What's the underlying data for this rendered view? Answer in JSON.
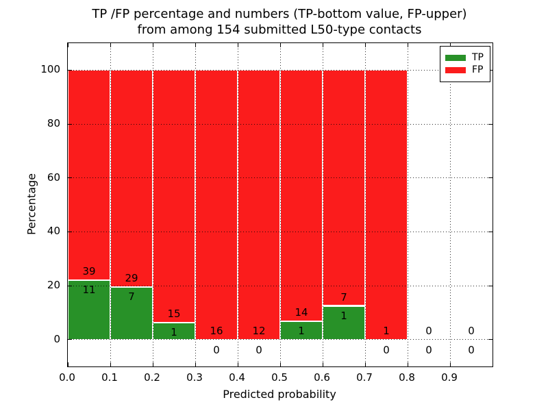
{
  "title": {
    "line1": "TP /FP percentage and numbers (TP-bottom value, FP-upper)",
    "line2": "from among 154 submitted L50-type contacts"
  },
  "chart_data": {
    "type": "bar",
    "stacked": true,
    "normalized_to_percent": true,
    "title": "TP /FP percentage and numbers (TP-bottom value, FP-upper)\nfrom among 154 submitted L50-type contacts",
    "xlabel": "Predicted probability",
    "ylabel": "Percentage",
    "xlim": [
      0.0,
      1.0
    ],
    "ylim": [
      -10,
      110
    ],
    "x_ticks": [
      "0.0",
      "0.1",
      "0.2",
      "0.3",
      "0.4",
      "0.5",
      "0.6",
      "0.7",
      "0.8",
      "0.9"
    ],
    "y_ticks": [
      0,
      20,
      40,
      60,
      80,
      100
    ],
    "grid": true,
    "total_contacts": 154,
    "bins": [
      {
        "range": [
          0.0,
          0.1
        ],
        "tp": 11,
        "fp": 39
      },
      {
        "range": [
          0.1,
          0.2
        ],
        "tp": 7,
        "fp": 29
      },
      {
        "range": [
          0.2,
          0.3
        ],
        "tp": 1,
        "fp": 15
      },
      {
        "range": [
          0.3,
          0.4
        ],
        "tp": 0,
        "fp": 16
      },
      {
        "range": [
          0.4,
          0.5
        ],
        "tp": 0,
        "fp": 12
      },
      {
        "range": [
          0.5,
          0.6
        ],
        "tp": 1,
        "fp": 14
      },
      {
        "range": [
          0.6,
          0.7
        ],
        "tp": 1,
        "fp": 7
      },
      {
        "range": [
          0.7,
          0.8
        ],
        "tp": 0,
        "fp": 1
      },
      {
        "range": [
          0.8,
          0.9
        ],
        "tp": 0,
        "fp": 0
      },
      {
        "range": [
          0.9,
          1.0
        ],
        "tp": 0,
        "fp": 0
      }
    ],
    "tp_percent_of_bin": [
      22.0,
      19.44,
      6.25,
      0,
      0,
      6.67,
      12.5,
      0,
      0,
      0
    ],
    "legend": {
      "position": "upper right",
      "entries": [
        {
          "label": "TP",
          "color": "#289128"
        },
        {
          "label": "FP",
          "color": "#fb1c1c"
        }
      ]
    },
    "colors": {
      "tp_bar": "#289128",
      "fp_bar": "#fb1c1c",
      "bar_edge": "#ffffff",
      "grid": "#000000",
      "text": "#000000",
      "background": "#ffffff"
    }
  }
}
